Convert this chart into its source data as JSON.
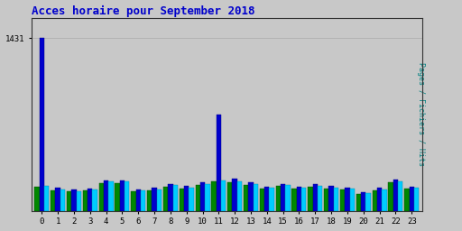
{
  "title": "Acces horaire pour September 2018",
  "ylabel": "Pages / Fichiers / Hits",
  "hours": [
    0,
    1,
    2,
    3,
    4,
    5,
    6,
    7,
    8,
    9,
    10,
    11,
    12,
    13,
    14,
    15,
    16,
    17,
    18,
    19,
    20,
    21,
    22,
    23
  ],
  "pages": [
    200,
    170,
    160,
    170,
    230,
    230,
    165,
    170,
    200,
    185,
    215,
    245,
    235,
    215,
    185,
    205,
    185,
    200,
    185,
    175,
    140,
    170,
    235,
    185
  ],
  "fichiers": [
    1431,
    190,
    175,
    185,
    255,
    255,
    180,
    190,
    220,
    205,
    235,
    800,
    270,
    235,
    200,
    225,
    200,
    220,
    205,
    195,
    155,
    190,
    260,
    200
  ],
  "hits": [
    210,
    180,
    165,
    180,
    245,
    245,
    170,
    180,
    215,
    195,
    225,
    255,
    245,
    225,
    195,
    215,
    195,
    210,
    195,
    185,
    145,
    180,
    245,
    195
  ],
  "color_pages": "#008800",
  "color_fichiers": "#0000CC",
  "color_hits": "#00CCFF",
  "bg_color": "#C8C8C8",
  "plot_bg": "#C8C8C8",
  "title_color": "#0000CC",
  "ylabel_color": "#008080",
  "ytick_label": "1431",
  "ylim_max": 1600,
  "grid_color": "#AAAAAA",
  "bar_width": 0.3
}
